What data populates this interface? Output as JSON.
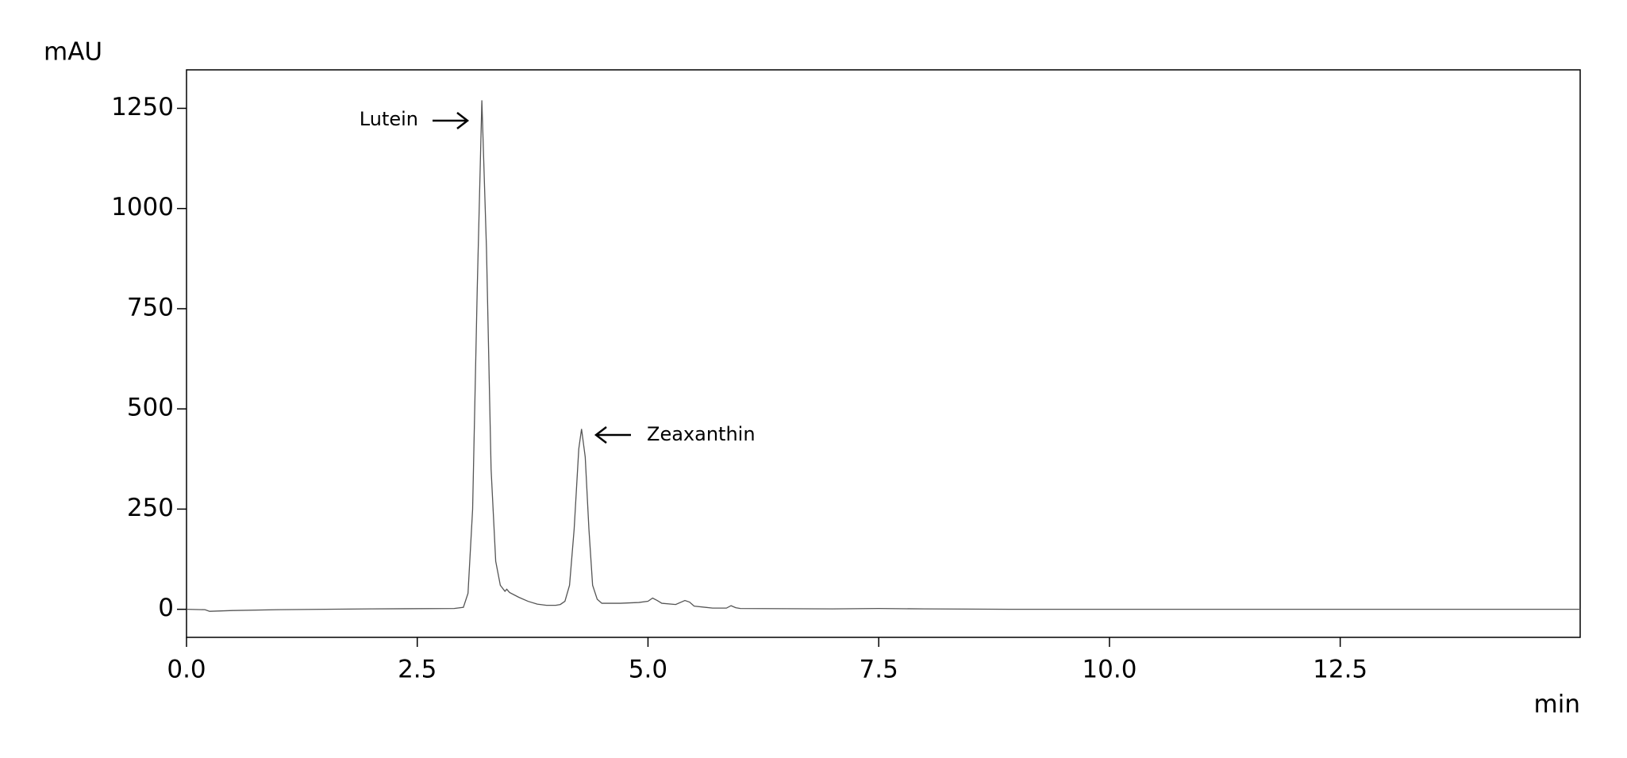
{
  "chart_data": {
    "type": "line",
    "y_label": "mAU",
    "x_label": "min",
    "annotations": [
      "Lutein",
      "Zeaxanthin"
    ],
    "x": [
      0,
      0.2,
      0.25,
      0.5,
      1,
      2,
      2.9,
      3.0,
      3.05,
      3.1,
      3.15,
      3.2,
      3.25,
      3.3,
      3.35,
      3.4,
      3.45,
      3.47,
      3.5,
      3.6,
      3.7,
      3.8,
      3.9,
      4.0,
      4.05,
      4.1,
      4.15,
      4.2,
      4.25,
      4.28,
      4.32,
      4.36,
      4.4,
      4.45,
      4.5,
      4.7,
      4.9,
      5.0,
      5.05,
      5.1,
      5.15,
      5.3,
      5.4,
      5.45,
      5.5,
      5.7,
      5.85,
      5.9,
      5.95,
      6.0,
      7,
      7.5,
      8,
      9,
      10,
      11,
      12,
      13,
      14,
      15.1
    ],
    "series": [
      {
        "color": "#555555",
        "values": [
          0,
          -1,
          -5,
          -3,
          -1,
          1,
          2,
          5,
          40,
          250,
          800,
          1270,
          900,
          350,
          120,
          60,
          45,
          50,
          42,
          30,
          20,
          13,
          10,
          10,
          12,
          20,
          60,
          200,
          400,
          450,
          380,
          200,
          60,
          25,
          15,
          15,
          17,
          20,
          28,
          22,
          15,
          12,
          22,
          18,
          8,
          3,
          3,
          9,
          4,
          2,
          1,
          2,
          1,
          0,
          0,
          0,
          0,
          0,
          0,
          0
        ]
      }
    ],
    "xlim": [
      0,
      15.1
    ],
    "ylim": [
      -70,
      1346
    ],
    "xticks": [
      {
        "value": 0,
        "label": "0.0"
      },
      2.5,
      {
        "value": 5,
        "label": "5.0"
      },
      7.5,
      {
        "value": 10,
        "label": "10.0"
      },
      12.5
    ],
    "yticks": [
      0,
      250,
      500,
      750,
      1000,
      1250
    ],
    "grid": false
  }
}
